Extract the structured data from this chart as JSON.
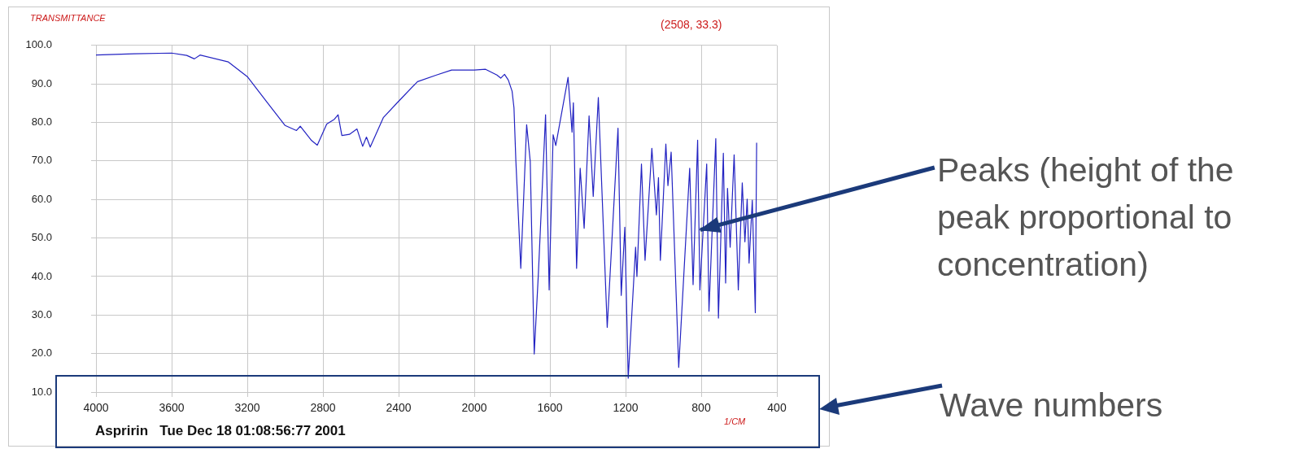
{
  "chart_data": {
    "type": "line",
    "ylabel": "TRANSMITTANCE",
    "xlabel": "1/CM",
    "annotations": [
      "(2508, 33.3)",
      "Aspririn   Tue Dec 18 01:08:56:77 2001",
      {
        "text": "Peaks (height of the peak proportional to concentration)",
        "x": 812,
        "y": 52
      },
      "Wave numbers"
    ],
    "x": [
      4000,
      3800,
      3600,
      3520,
      3480,
      3450,
      3300,
      3200,
      3100,
      3000,
      2940,
      2920,
      2860,
      2830,
      2780,
      2740,
      2720,
      2700,
      2660,
      2620,
      2590,
      2570,
      2550,
      2480,
      2400,
      2300,
      2200,
      2120,
      2000,
      1940,
      1880,
      1860,
      1840,
      1820,
      1800,
      1790,
      1780,
      1754,
      1723,
      1704,
      1683,
      1661,
      1623,
      1604,
      1583,
      1569,
      1504,
      1483,
      1476,
      1459,
      1440,
      1419,
      1393,
      1371,
      1344,
      1297,
      1240,
      1223,
      1204,
      1186,
      1147,
      1140,
      1116,
      1097,
      1061,
      1037,
      1026,
      1016,
      987,
      976,
      959,
      919,
      861,
      843,
      819,
      807,
      771,
      759,
      723,
      709,
      683,
      671,
      661,
      647,
      626,
      604,
      583,
      569,
      557,
      547,
      530,
      514,
      507
    ],
    "values": [
      97.5,
      97.8,
      98.0,
      97.4,
      96.5,
      97.5,
      95.7,
      91.9,
      85.5,
      79.2,
      77.9,
      79.0,
      75.3,
      74.1,
      79.6,
      80.8,
      82.0,
      76.6,
      76.9,
      78.3,
      73.8,
      76.2,
      73.6,
      81.3,
      85.5,
      90.6,
      92.3,
      93.6,
      93.6,
      93.8,
      92.3,
      91.5,
      92.5,
      91.0,
      88.1,
      83.8,
      70.0,
      42.1,
      79.4,
      69.9,
      19.9,
      40.7,
      82.0,
      36.5,
      76.8,
      74.0,
      91.7,
      77.5,
      85.1,
      42.1,
      68.1,
      52.5,
      81.7,
      60.8,
      86.5,
      26.8,
      78.5,
      35.1,
      52.8,
      13.6,
      47.6,
      40.0,
      69.2,
      44.2,
      73.3,
      56.0,
      65.7,
      44.2,
      74.4,
      63.6,
      72.3,
      16.4,
      68.1,
      37.9,
      75.4,
      36.5,
      69.2,
      31.0,
      75.8,
      29.2,
      72.0,
      38.3,
      62.9,
      47.6,
      71.6,
      36.5,
      64.3,
      49.0,
      60.1,
      43.5,
      59.8,
      30.6,
      74.7
    ],
    "color": "#2323c2",
    "xlim": [
      4000,
      400
    ],
    "xticks": [
      4000,
      3600,
      3200,
      2800,
      2400,
      2000,
      1600,
      1200,
      800,
      400
    ],
    "ylim": [
      10,
      100
    ],
    "yticks": [
      {
        "value": 10,
        "label": "10.0"
      },
      {
        "value": 20,
        "label": "20.0"
      },
      {
        "value": 30,
        "label": "30.0"
      },
      {
        "value": 40,
        "label": "40.0"
      },
      {
        "value": 50,
        "label": "50.0"
      },
      {
        "value": 60,
        "label": "60.0"
      },
      {
        "value": 70,
        "label": "70.0"
      },
      {
        "value": 80,
        "label": "80.0"
      },
      {
        "value": 90,
        "label": "90.0"
      },
      {
        "value": 100,
        "label": "100.0"
      }
    ],
    "grid": true,
    "legend": false,
    "marker": "none",
    "line_style": "solid"
  }
}
